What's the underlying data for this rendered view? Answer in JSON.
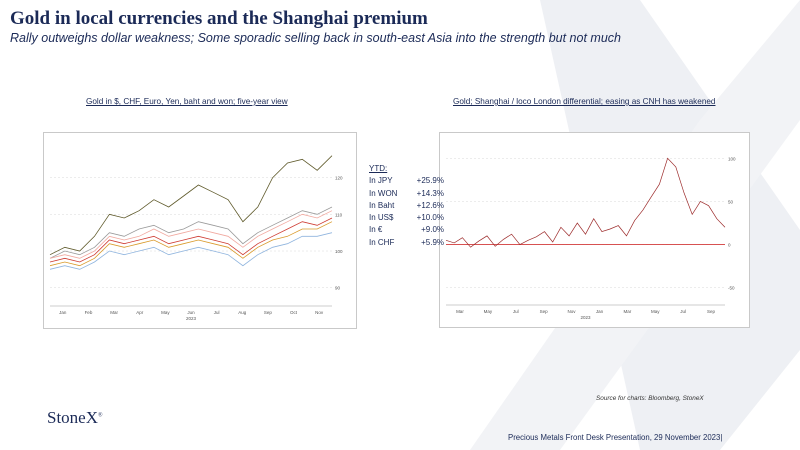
{
  "slide": {
    "title": "Gold in local currencies and the Shanghai premium",
    "subtitle": "Rally outweighs dollar weakness; Some sporadic selling back in south-east Asia into the strength but not much",
    "source": "Source for charts: Bloomberg, StoneX",
    "logo": "StoneX",
    "footer": "Precious Metals Front Desk Presentation, 29 November 2023|"
  },
  "ytd": {
    "heading": "YTD:",
    "rows": [
      {
        "label": "In JPY",
        "value": "+25.9%"
      },
      {
        "label": "In WON",
        "value": "+14.3%"
      },
      {
        "label": "In Baht",
        "value": "+12.6%"
      },
      {
        "label": "In US$",
        "value": "+10.0%"
      },
      {
        "label": "In €",
        "value": "+9.0%"
      },
      {
        "label": "In CHF",
        "value": "+5.9%"
      }
    ]
  },
  "colors": {
    "navy": "#1b2a57",
    "jpy": "#5f5a2b",
    "won": "#9a9a9a",
    "baht": "#f1a9a0",
    "usd": "#ce3b32",
    "eur": "#d99a2b",
    "chf": "#8fb4de",
    "premium": "#9c2a2a"
  },
  "chart_data": [
    {
      "type": "line",
      "title": "Gold in $, CHF, Euro, Yen, baht and won; five-year view",
      "x_ticks": [
        "Jan",
        "Feb",
        "Mar",
        "Apr",
        "May",
        "Jun",
        "Jul",
        "Aug",
        "Sep",
        "Oct",
        "Nov"
      ],
      "x_year": "2023",
      "y_ticks": [
        120,
        110,
        100,
        90
      ],
      "series": [
        {
          "name": "JPY",
          "values": [
            99,
            101,
            100,
            104,
            110,
            109,
            111,
            114,
            112,
            115,
            118,
            116,
            114,
            108,
            112,
            120,
            124,
            125,
            122,
            126
          ]
        },
        {
          "name": "WON",
          "values": [
            98,
            100,
            99,
            101,
            105,
            104,
            106,
            107,
            105,
            106,
            108,
            107,
            106,
            102,
            105,
            107,
            109,
            111,
            110,
            112
          ]
        },
        {
          "name": "Baht",
          "values": [
            98,
            99,
            98,
            100,
            104,
            103,
            104,
            106,
            104,
            105,
            106,
            105,
            104,
            101,
            104,
            106,
            108,
            110,
            109,
            111
          ]
        },
        {
          "name": "US$",
          "values": [
            97,
            98,
            97,
            99,
            103,
            102,
            103,
            104,
            102,
            103,
            104,
            103,
            102,
            99,
            102,
            104,
            106,
            108,
            107,
            109
          ]
        },
        {
          "name": "€",
          "values": [
            96,
            97,
            96,
            98,
            102,
            101,
            102,
            103,
            101,
            102,
            103,
            102,
            101,
            98,
            101,
            103,
            104,
            106,
            106,
            108
          ]
        },
        {
          "name": "CHF",
          "values": [
            95,
            96,
            95,
            97,
            100,
            99,
            100,
            101,
            99,
            100,
            101,
            100,
            99,
            96,
            99,
            101,
            102,
            104,
            104,
            105
          ]
        }
      ]
    },
    {
      "type": "line",
      "title": "Gold; Shanghai  / loco London differential; easing as CNH has weakened",
      "x_ticks": [
        "Mar",
        "May",
        "Jul",
        "Sep",
        "Nov",
        "Jan",
        "Mar",
        "May",
        "Jul",
        "Sep"
      ],
      "x_year": "2023",
      "y_ticks": [
        100,
        50,
        0,
        -50
      ],
      "series": [
        {
          "name": "",
          "values": [
            5,
            2,
            8,
            -3,
            4,
            10,
            -2,
            6,
            12,
            0,
            5,
            9,
            15,
            3,
            20,
            10,
            25,
            12,
            30,
            15,
            18,
            22,
            10,
            28,
            40,
            55,
            70,
            100,
            90,
            60,
            35,
            50,
            45,
            30,
            20
          ]
        }
      ]
    }
  ]
}
